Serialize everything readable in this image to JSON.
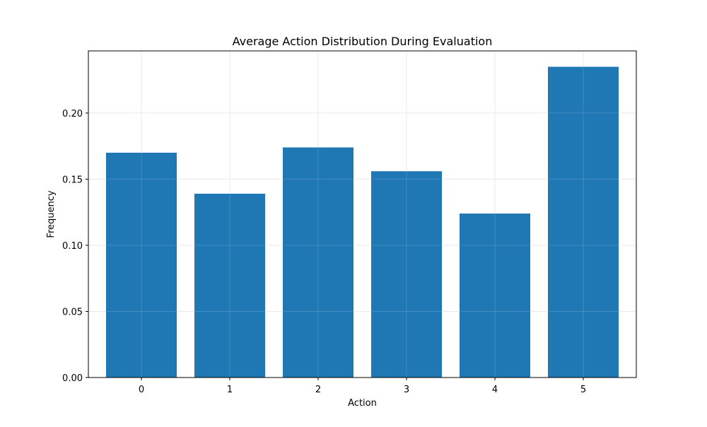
{
  "chart_data": {
    "type": "bar",
    "title": "Average Action Distribution During Evaluation",
    "xlabel": "Action",
    "ylabel": "Frequency",
    "categories": [
      "0",
      "1",
      "2",
      "3",
      "4",
      "5"
    ],
    "values": [
      0.17,
      0.139,
      0.174,
      0.156,
      0.124,
      0.235
    ],
    "ylim": [
      0,
      0.247
    ],
    "yticks": [
      0.0,
      0.05,
      0.1,
      0.15,
      0.2
    ],
    "ytick_labels": [
      "0.00",
      "0.05",
      "0.10",
      "0.15",
      "0.20"
    ],
    "grid": true,
    "bar_color": "#1f77b4",
    "grid_color": "#e6e6e6"
  }
}
